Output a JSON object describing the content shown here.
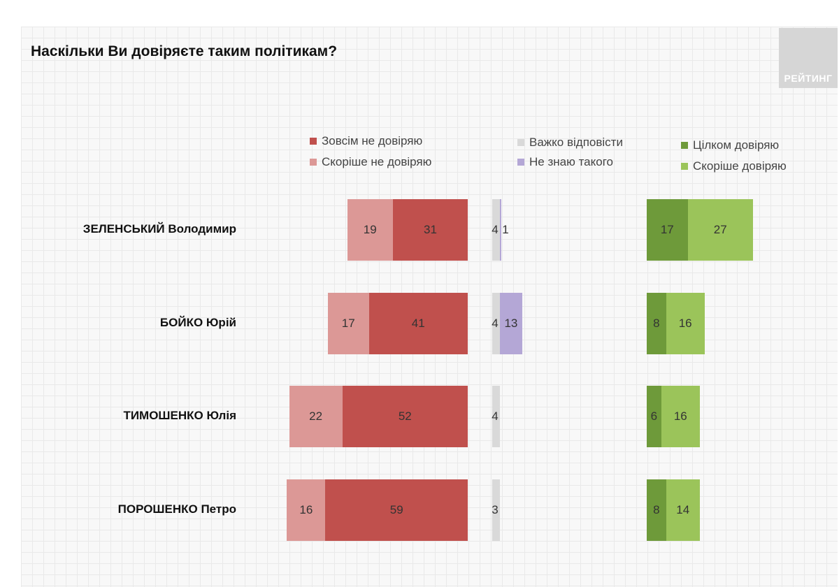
{
  "title": "Наскільки Ви довіряєте таким політикам?",
  "logo": {
    "text": "РЕЙТИНГ"
  },
  "chart_data": {
    "type": "bar",
    "orientation": "horizontal",
    "title": "Наскільки Ви довіряєте таким політикам?",
    "categories": [
      "ЗЕЛЕНСЬКИЙ Володимир",
      "БОЙКО Юрій",
      "ТИМОШЕНКО Юлія",
      "ПОРОШЕНКО Петро"
    ],
    "series": [
      {
        "name": "Зовсім не довіряю",
        "color": "#c0504d",
        "group": "distrust",
        "values": [
          31,
          41,
          52,
          59
        ]
      },
      {
        "name": "Скоріше не довіряю",
        "color": "#dc9896",
        "group": "distrust",
        "values": [
          19,
          17,
          22,
          16
        ]
      },
      {
        "name": "Важко відповісти",
        "color": "#d9d9d9",
        "group": "neutral",
        "values": [
          4,
          4,
          4,
          3
        ]
      },
      {
        "name": "Не знаю такого",
        "color": "#b4a7d6",
        "group": "neutral",
        "values": [
          1,
          13,
          null,
          null
        ]
      },
      {
        "name": "Цілком довіряю",
        "color": "#6e9a3a",
        "group": "trust",
        "values": [
          17,
          8,
          6,
          8
        ]
      },
      {
        "name": "Скоріше довіряю",
        "color": "#9bc45a",
        "group": "trust",
        "values": [
          27,
          16,
          16,
          14
        ]
      }
    ],
    "grid": false,
    "legend_placement": "top"
  }
}
